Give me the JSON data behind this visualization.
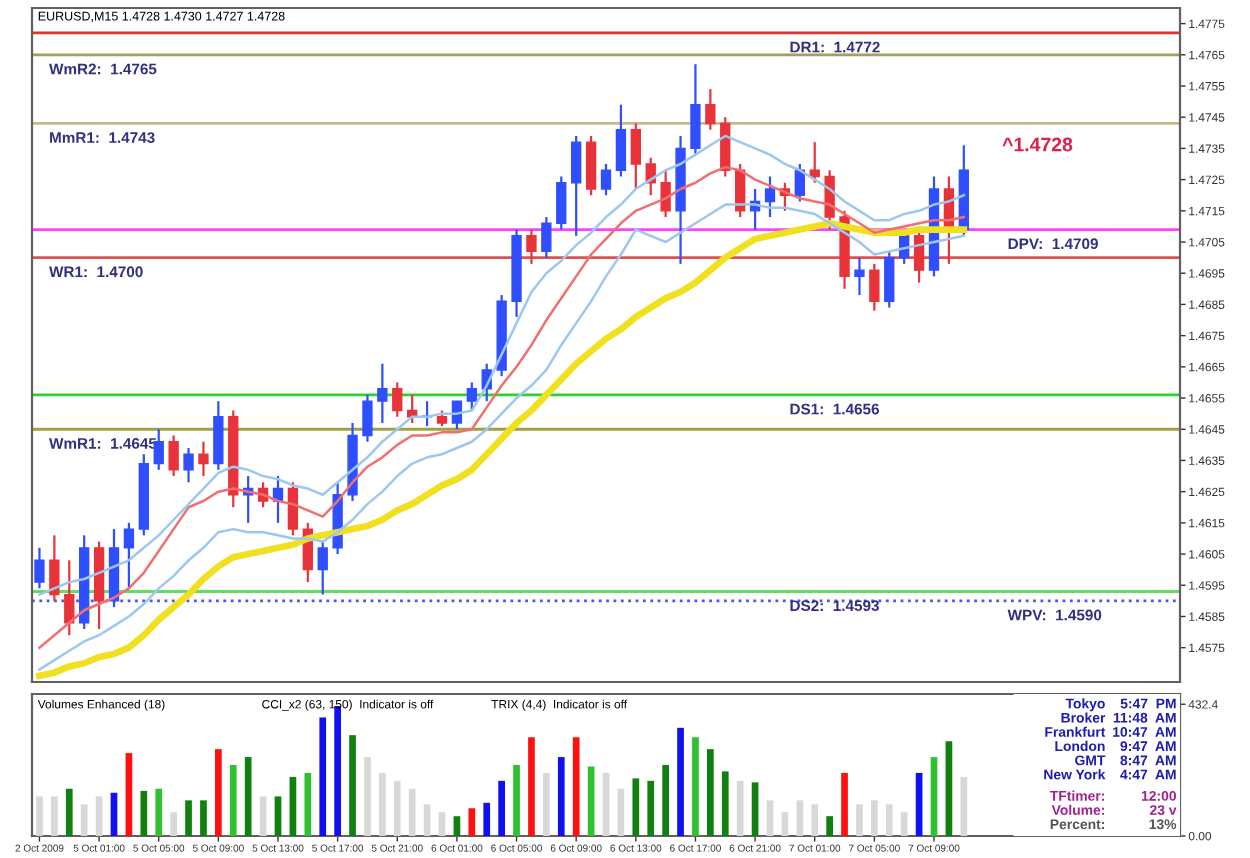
{
  "chart_data": [
    {
      "type": "candlestick",
      "title": "EURUSD,M15 1.4728 1.4730 1.4727 1.4728",
      "categories": [
        null,
        null,
        null,
        null,
        null,
        null,
        null,
        null,
        null,
        null,
        null,
        null,
        null,
        null,
        null,
        null,
        null,
        null,
        null,
        null,
        null,
        null,
        null,
        null,
        null,
        null,
        null,
        null,
        null,
        null,
        null,
        null,
        null,
        null,
        null,
        null,
        null,
        null,
        null,
        null,
        null,
        null,
        null,
        null,
        null,
        null,
        null,
        null,
        null,
        null,
        null,
        null,
        null,
        null,
        null,
        null,
        null,
        null,
        null,
        null,
        null,
        null,
        null,
        null,
        null,
        null,
        null,
        null,
        null,
        null,
        null,
        null,
        null,
        null,
        null,
        null,
        null
      ],
      "ohlc": [
        [
          1.4596,
          1.4607,
          1.4594,
          1.4603
        ],
        [
          1.4603,
          1.4611,
          1.459,
          1.4592
        ],
        [
          1.4592,
          1.4603,
          1.4579,
          1.4583
        ],
        [
          1.4583,
          1.4611,
          1.4581,
          1.4607
        ],
        [
          1.4607,
          1.4609,
          1.4581,
          1.459
        ],
        [
          1.459,
          1.4613,
          1.4588,
          1.4607
        ],
        [
          1.4607,
          1.4615,
          1.4594,
          1.4613
        ],
        [
          1.4613,
          1.4637,
          1.4611,
          1.4634
        ],
        [
          1.4634,
          1.4645,
          1.4632,
          1.4641
        ],
        [
          1.4641,
          1.4643,
          1.463,
          1.4632
        ],
        [
          1.4632,
          1.4639,
          1.4628,
          1.4637
        ],
        [
          1.4637,
          1.4641,
          1.463,
          1.4634
        ],
        [
          1.4634,
          1.4654,
          1.4632,
          1.4649
        ],
        [
          1.4649,
          1.4651,
          1.462,
          1.4624
        ],
        [
          1.4624,
          1.463,
          1.4615,
          1.4626
        ],
        [
          1.4626,
          1.4628,
          1.462,
          1.4622
        ],
        [
          1.4622,
          1.463,
          1.4615,
          1.4626
        ],
        [
          1.4626,
          1.4628,
          1.4611,
          1.4613
        ],
        [
          1.4613,
          1.4615,
          1.4596,
          1.46
        ],
        [
          1.46,
          1.4609,
          1.4592,
          1.4607
        ],
        [
          1.4607,
          1.4628,
          1.4605,
          1.4624
        ],
        [
          1.4624,
          1.4647,
          1.4622,
          1.4643
        ],
        [
          1.4643,
          1.4656,
          1.4641,
          1.4654
        ],
        [
          1.4654,
          1.4666,
          1.4647,
          1.4658
        ],
        [
          1.4658,
          1.466,
          1.4649,
          1.4651
        ],
        [
          1.4651,
          1.4656,
          1.4647,
          1.4649
        ],
        [
          1.4649,
          1.4654,
          1.4646,
          1.4649
        ],
        [
          1.4649,
          1.4651,
          1.4646,
          1.4647
        ],
        [
          1.4647,
          1.4654,
          1.4645,
          1.4654
        ],
        [
          1.4654,
          1.466,
          1.4651,
          1.4658
        ],
        [
          1.4658,
          1.4666,
          1.4654,
          1.4664
        ],
        [
          1.4664,
          1.4688,
          1.4662,
          1.4686
        ],
        [
          1.4686,
          1.4709,
          1.4681,
          1.4707
        ],
        [
          1.4707,
          1.4709,
          1.4698,
          1.4702
        ],
        [
          1.4702,
          1.4713,
          1.47,
          1.4711
        ],
        [
          1.4711,
          1.4726,
          1.4709,
          1.4724
        ],
        [
          1.4724,
          1.4739,
          1.4707,
          1.4737
        ],
        [
          1.4737,
          1.4739,
          1.472,
          1.4722
        ],
        [
          1.4722,
          1.473,
          1.472,
          1.4728
        ],
        [
          1.4728,
          1.4749,
          1.4726,
          1.4741
        ],
        [
          1.4741,
          1.4743,
          1.4722,
          1.473
        ],
        [
          1.473,
          1.4732,
          1.472,
          1.4724
        ],
        [
          1.4724,
          1.4728,
          1.4713,
          1.4715
        ],
        [
          1.4715,
          1.4739,
          1.4698,
          1.4735
        ],
        [
          1.4735,
          1.4762,
          1.4733,
          1.4749
        ],
        [
          1.4749,
          1.4754,
          1.4741,
          1.4743
        ],
        [
          1.4743,
          1.4745,
          1.4726,
          1.4728
        ],
        [
          1.4728,
          1.473,
          1.4713,
          1.4715
        ],
        [
          1.4715,
          1.4722,
          1.4709,
          1.4718
        ],
        [
          1.4718,
          1.4726,
          1.4713,
          1.4722
        ],
        [
          1.4722,
          1.4724,
          1.4715,
          1.472
        ],
        [
          1.472,
          1.473,
          1.4718,
          1.4728
        ],
        [
          1.4728,
          1.4737,
          1.4724,
          1.4726
        ],
        [
          1.4726,
          1.4728,
          1.4709,
          1.4713
        ],
        [
          1.4713,
          1.4715,
          1.469,
          1.4694
        ],
        [
          1.4694,
          1.47,
          1.4688,
          1.4696
        ],
        [
          1.4696,
          1.4698,
          1.4683,
          1.4686
        ],
        [
          1.4686,
          1.4702,
          1.4684,
          1.47
        ],
        [
          1.47,
          1.4709,
          1.4698,
          1.4707
        ],
        [
          1.4707,
          1.4709,
          1.4692,
          1.4696
        ],
        [
          1.4696,
          1.4726,
          1.4694,
          1.4722
        ],
        [
          1.4722,
          1.4726,
          1.4698,
          1.4709
        ],
        [
          1.4709,
          1.4736,
          1.4707,
          1.4728
        ],
        null,
        null,
        null,
        null,
        null,
        null,
        null,
        null,
        null,
        null,
        null,
        null,
        null,
        null
      ],
      "colors": [
        "#2f4fff",
        "#e8333a",
        "#e8333a",
        "#2f4fff",
        "#e8333a",
        "#2f4fff",
        "#2f4fff",
        "#2f4fff",
        "#2f4fff",
        "#e8333a",
        "#2f4fff",
        "#e8333a",
        "#2f4fff",
        "#e8333a",
        "#2f4fff",
        "#e8333a",
        "#2f4fff",
        "#e8333a",
        "#e8333a",
        "#2f4fff",
        "#2f4fff",
        "#2f4fff",
        "#2f4fff",
        "#2f4fff",
        "#e8333a",
        "#e8333a",
        "#2f4fff",
        "#e8333a",
        "#2f4fff",
        "#2f4fff",
        "#2f4fff",
        "#2f4fff",
        "#2f4fff",
        "#e8333a",
        "#2f4fff",
        "#2f4fff",
        "#2f4fff",
        "#e8333a",
        "#2f4fff",
        "#2f4fff",
        "#e8333a",
        "#e8333a",
        "#e8333a",
        "#2f4fff",
        "#2f4fff",
        "#e8333a",
        "#e8333a",
        "#e8333a",
        "#2f4fff",
        "#2f4fff",
        "#e8333a",
        "#2f4fff",
        "#e8333a",
        "#e8333a",
        "#e8333a",
        "#2f4fff",
        "#e8333a",
        "#2f4fff",
        "#2f4fff",
        "#e8333a",
        "#2f4fff",
        "#e8333a",
        "#2f4fff",
        null,
        null,
        null,
        null,
        null,
        null,
        null,
        null,
        null,
        null,
        null,
        null,
        null,
        null
      ],
      "series": [
        {
          "type": "line",
          "color": "#f0e020",
          "values": [
            1.4566,
            1.4567,
            1.4569,
            1.457,
            1.4572,
            1.4573,
            1.4575,
            1.4579,
            1.4584,
            1.4588,
            1.4592,
            1.4597,
            1.4601,
            1.4604,
            1.4605,
            1.4606,
            1.4607,
            1.4608,
            1.461,
            1.4611,
            1.4612,
            1.4613,
            1.4614,
            1.4616,
            1.4619,
            1.4621,
            1.4624,
            1.4627,
            1.4629,
            1.4632,
            1.4637,
            1.4642,
            1.4647,
            1.4651,
            1.4656,
            1.4661,
            1.4666,
            1.467,
            1.4674,
            1.4677,
            1.4681,
            1.4684,
            1.4687,
            1.4689,
            1.4692,
            1.4696,
            1.47,
            1.4703,
            1.4706,
            1.4707,
            1.4708,
            1.4709,
            1.471,
            1.4711,
            1.471,
            1.4709,
            1.4708,
            1.4708,
            1.4708,
            1.4709,
            1.4709,
            1.4709,
            1.4709,
            null,
            null,
            null,
            null,
            null,
            null,
            null,
            null,
            null,
            null,
            null,
            null,
            null,
            null
          ]
        },
        {
          "type": "line",
          "color": "#f07070",
          "values": [
            1.4575,
            1.4579,
            1.4583,
            1.4587,
            1.4589,
            1.4591,
            1.4594,
            1.4599,
            1.4606,
            1.4613,
            1.462,
            1.4622,
            1.4625,
            1.4626,
            1.4625,
            1.4624,
            1.4622,
            1.4621,
            1.4619,
            1.4617,
            1.4622,
            1.4628,
            1.4633,
            1.4636,
            1.464,
            1.4643,
            1.4643,
            1.4644,
            1.4644,
            1.4645,
            1.4652,
            1.4659,
            1.4665,
            1.4672,
            1.468,
            1.4687,
            1.4694,
            1.4701,
            1.4706,
            1.4711,
            1.4715,
            1.4717,
            1.4719,
            1.4722,
            1.4724,
            1.4727,
            1.4729,
            1.4728,
            1.4725,
            1.4723,
            1.4721,
            1.4719,
            1.4718,
            1.4717,
            1.4714,
            1.4711,
            1.4708,
            1.4709,
            1.471,
            1.4711,
            1.4712,
            1.4712,
            1.4713,
            null,
            null,
            null,
            null,
            null,
            null,
            null,
            null,
            null,
            null,
            null,
            null,
            null,
            null
          ]
        },
        {
          "type": "line",
          "color": "#9cc8f0",
          "values": [
            1.4592,
            1.4594,
            1.4596,
            1.4597,
            1.4599,
            1.4601,
            1.4603,
            1.4607,
            1.4611,
            1.4616,
            1.4621,
            1.4626,
            1.4631,
            1.4633,
            1.4632,
            1.463,
            1.4629,
            1.4627,
            1.4626,
            1.4624,
            1.4628,
            1.4632,
            1.4636,
            1.4641,
            1.4645,
            1.4649,
            1.4649,
            1.465,
            1.465,
            1.4651,
            1.4659,
            1.4669,
            1.4679,
            1.4689,
            1.4695,
            1.4699,
            1.4704,
            1.4708,
            1.4713,
            1.4717,
            1.4722,
            1.4725,
            1.4728,
            1.473,
            1.4733,
            1.4736,
            1.4739,
            1.4737,
            1.4735,
            1.4733,
            1.473,
            1.4728,
            1.4725,
            1.4722,
            1.4718,
            1.4715,
            1.4712,
            1.4712,
            1.4714,
            1.4715,
            1.4717,
            1.4718,
            1.472,
            null,
            null,
            null,
            null,
            null,
            null,
            null,
            null,
            null,
            null,
            null,
            null,
            null,
            null
          ]
        },
        {
          "type": "line",
          "color": "#9cc8f0",
          "values": [
            1.4568,
            1.4571,
            1.4574,
            1.4577,
            1.4579,
            1.4582,
            1.4585,
            1.4589,
            1.4594,
            1.4598,
            1.4603,
            1.4607,
            1.4612,
            1.4613,
            1.4612,
            1.4612,
            1.4611,
            1.461,
            1.461,
            1.4609,
            1.4612,
            1.4616,
            1.4621,
            1.4625,
            1.463,
            1.4634,
            1.4636,
            1.4637,
            1.4639,
            1.4641,
            1.4645,
            1.465,
            1.4655,
            1.4659,
            1.4664,
            1.4672,
            1.4679,
            1.4686,
            1.4694,
            1.4701,
            1.4709,
            1.4707,
            1.4705,
            1.4708,
            1.4711,
            1.4714,
            1.4717,
            1.4717,
            1.4717,
            1.4716,
            1.4716,
            1.4715,
            1.4714,
            1.4711,
            1.4708,
            1.4705,
            1.4701,
            1.4702,
            1.4703,
            1.4704,
            1.4705,
            1.4706,
            1.4707,
            null,
            null,
            null,
            null,
            null,
            null,
            null,
            null,
            null,
            null,
            null,
            null,
            null,
            null
          ]
        }
      ],
      "ylim": [
        1.4564,
        1.478
      ],
      "yticks": [
        1.4575,
        1.4585,
        1.4595,
        1.4605,
        1.4615,
        1.4625,
        1.4635,
        1.4645,
        1.4655,
        1.4665,
        1.4675,
        1.4685,
        1.4695,
        1.4705,
        1.4715,
        1.4725,
        1.4735,
        1.4745,
        1.4755,
        1.4765,
        1.4775
      ],
      "tick_labels": "y",
      "ref_lines": [
        {
          "axis": "y",
          "value": 1.4765,
          "label": "WmR2:  1.4765",
          "color": "#a0a060",
          "line_style": "solid"
        },
        {
          "axis": "y",
          "value": 1.4743,
          "label": "MmR1:  1.4743",
          "color": "#c8b888",
          "line_style": "solid"
        },
        {
          "axis": "y",
          "value": 1.47,
          "label": "WR1:  1.4700",
          "color": "#e05050",
          "line_style": "solid"
        },
        {
          "axis": "y",
          "value": 1.4645,
          "label": "WmR1:  1.4645",
          "color": "#a0a040",
          "line_style": "solid"
        },
        {
          "axis": "y",
          "value": 1.459,
          "label": "WPV:  1.4590",
          "color": "#5050ff",
          "line_style": "dotted"
        },
        {
          "axis": "y",
          "value": 1.4772,
          "label": "DR1:  1.4772",
          "color": "#e03030",
          "line_style": "solid"
        },
        {
          "axis": "y",
          "value": 1.4709,
          "label": "DPV:  1.4709",
          "color": "#ff40ff",
          "line_style": "solid"
        },
        {
          "axis": "y",
          "value": 1.4656,
          "label": "DS1:  1.4656",
          "color": "#30d030",
          "line_style": "solid"
        },
        {
          "axis": "y",
          "value": 1.4593,
          "label": "DS2:  1.4593",
          "color": "#60e060",
          "line_style": "solid"
        }
      ],
      "annotations": [
        "^1.4728"
      ]
    },
    {
      "type": "bar",
      "categories": [
        "2 Oct 2009",
        null,
        null,
        null,
        "5 Oct 01:00",
        null,
        null,
        null,
        "5 Oct 05:00",
        null,
        null,
        null,
        "5 Oct 09:00",
        null,
        null,
        null,
        "5 Oct 13:00",
        null,
        null,
        null,
        "5 Oct 17:00",
        null,
        null,
        null,
        "5 Oct 21:00",
        null,
        null,
        null,
        "6 Oct 01:00",
        null,
        null,
        null,
        "6 Oct 05:00",
        null,
        null,
        null,
        "6 Oct 09:00",
        null,
        null,
        null,
        "6 Oct 13:00",
        null,
        null,
        null,
        "6 Oct 17:00",
        null,
        null,
        null,
        "6 Oct 21:00",
        null,
        null,
        null,
        "7 Oct 01:00",
        null,
        null,
        null,
        "7 Oct 05:00",
        null,
        null,
        null,
        "7 Oct 09:00",
        null,
        null,
        null,
        null,
        null,
        null,
        null,
        null,
        null,
        null,
        null,
        null,
        null,
        null,
        null,
        null
      ],
      "values": [
        130,
        130,
        155,
        104,
        130,
        142,
        272,
        148,
        155,
        78,
        117,
        117,
        285,
        233,
        259,
        130,
        130,
        194,
        207,
        389,
        427,
        331,
        259,
        207,
        181,
        155,
        104,
        78,
        65,
        91,
        109,
        181,
        233,
        324,
        207,
        259,
        324,
        228,
        207,
        155,
        189,
        181,
        233,
        355,
        324,
        285,
        212,
        181,
        176,
        117,
        78,
        117,
        104,
        65,
        207,
        104,
        117,
        104,
        78,
        207,
        259,
        311,
        194,
        null,
        null,
        null,
        null,
        null,
        null,
        null,
        null,
        null,
        null,
        null,
        null,
        null,
        null
      ],
      "colors": [
        "#d8d8d8",
        "#d8d8d8",
        "#108010",
        "#d8d8d8",
        "#d8d8d8",
        "#1010f0",
        "#ff1010",
        "#108010",
        "#30c030",
        "#d8d8d8",
        "#108010",
        "#108010",
        "#ff1010",
        "#30c030",
        "#108010",
        "#d8d8d8",
        "#108010",
        "#108010",
        "#30c030",
        "#1010f0",
        "#1010f0",
        "#108010",
        "#d8d8d8",
        "#d8d8d8",
        "#d8d8d8",
        "#d8d8d8",
        "#d8d8d8",
        "#d8d8d8",
        "#108010",
        "#ff1010",
        "#1010f0",
        "#1010f0",
        "#30c030",
        "#ff1010",
        "#d8d8d8",
        "#1010f0",
        "#ff1010",
        "#30c030",
        "#d8d8d8",
        "#d8d8d8",
        "#108010",
        "#108010",
        "#108010",
        "#1010f0",
        "#30c030",
        "#108010",
        "#108010",
        "#d8d8d8",
        "#108010",
        "#d8d8d8",
        "#d8d8d8",
        "#d8d8d8",
        "#d8d8d8",
        "#108010",
        "#ff1010",
        "#d8d8d8",
        "#d8d8d8",
        "#d8d8d8",
        "#d8d8d8",
        "#1010f0",
        "#30c030",
        "#108010",
        "#d8d8d8",
        null,
        null,
        null,
        null,
        null,
        null,
        null,
        null,
        null,
        null,
        null,
        null,
        null,
        null
      ],
      "ylim": [
        0,
        466
      ],
      "yticks": [
        {
          "value": 0,
          "label": "0.00"
        },
        432.4
      ],
      "annotations": [
        "Volumes Enhanced (18)",
        "CCI_x2 (63, 150)  Indicator is off",
        "TRIX (4,4)  Indicator is off",
        "Tokyo",
        "5:47  PM",
        "Broker",
        "11:48  AM",
        "Frankfurt",
        "10:47  AM",
        "London",
        "9:47  AM",
        "GMT",
        "8:47  AM",
        "New York",
        "4:47  AM",
        "TFtimer:",
        "12:00",
        "Volume:",
        "23 v",
        "Percent:",
        "13%"
      ]
    }
  ]
}
